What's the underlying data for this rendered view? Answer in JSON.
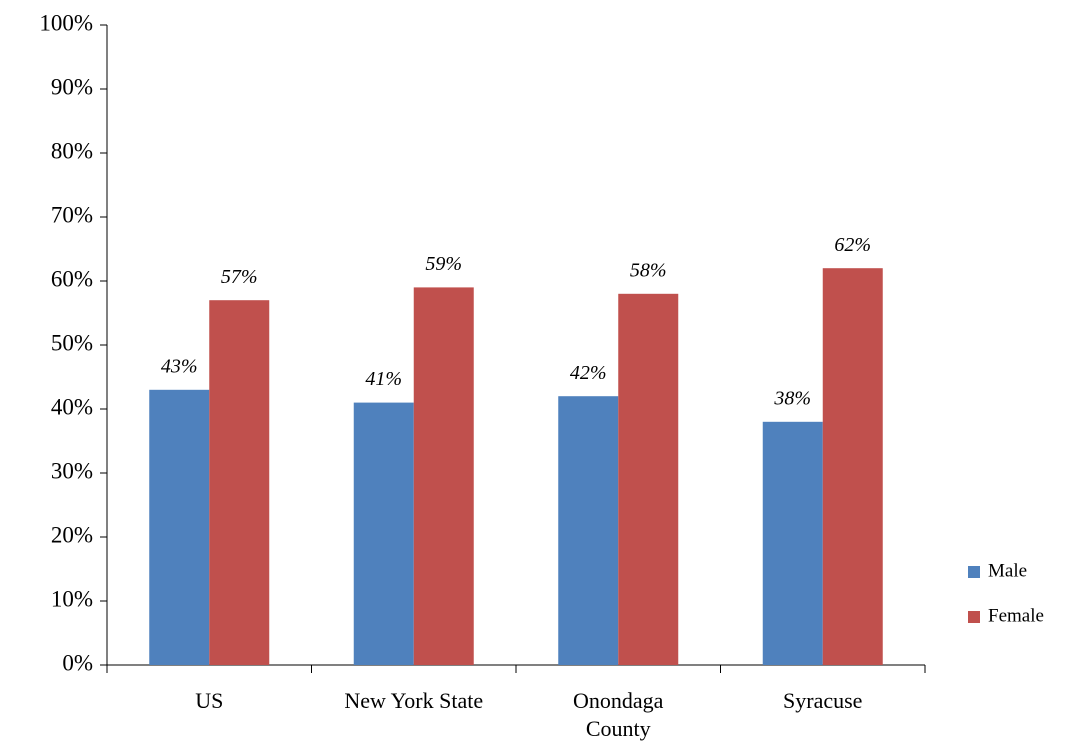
{
  "chart_data": {
    "type": "bar",
    "categories": [
      "US",
      "New York State",
      "Onondaga County",
      "Syracuse"
    ],
    "series": [
      {
        "name": "Male",
        "color": "#4f81bd",
        "values": [
          43,
          41,
          42,
          38
        ],
        "value_labels": [
          "43%",
          "41%",
          "42%",
          "38%"
        ]
      },
      {
        "name": "Female",
        "color": "#c0504d",
        "values": [
          57,
          59,
          58,
          62
        ],
        "value_labels": [
          "57%",
          "59%",
          "58%",
          "62%"
        ]
      }
    ],
    "ylim": [
      0,
      100
    ],
    "yticks": [
      {
        "value": 0,
        "label": "0%"
      },
      {
        "value": 10,
        "label": "10%"
      },
      {
        "value": 20,
        "label": "20%"
      },
      {
        "value": 30,
        "label": "30%"
      },
      {
        "value": 40,
        "label": "40%"
      },
      {
        "value": 50,
        "label": "50%"
      },
      {
        "value": 60,
        "label": "60%"
      },
      {
        "value": 70,
        "label": "70%"
      },
      {
        "value": 80,
        "label": "80%"
      },
      {
        "value": 90,
        "label": "90%"
      },
      {
        "value": 100,
        "label": "100%"
      }
    ],
    "grid": false,
    "legend": "right"
  }
}
